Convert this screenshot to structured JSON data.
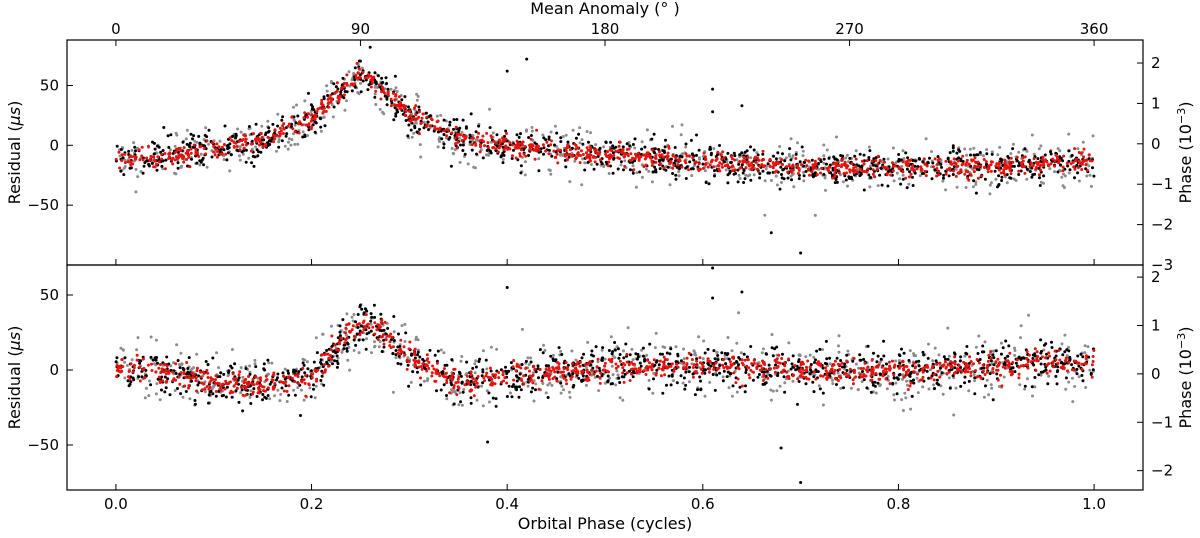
{
  "chart_data": {
    "type": "scatter",
    "layout": "two vertically stacked panels sharing x-axis",
    "shared_x": {
      "bottom_label": "Orbital Phase (cycles)",
      "bottom_ticks": [
        0.0,
        0.2,
        0.4,
        0.6,
        0.8,
        1.0
      ],
      "bottom_tick_labels": [
        "0.0",
        "0.2",
        "0.4",
        "0.6",
        "0.8",
        "1.0"
      ],
      "xlim": [
        -0.05,
        1.05
      ],
      "top_label": "Mean Anomaly (° )",
      "top_ticks": [
        0,
        90,
        180,
        270,
        360
      ],
      "top_tick_labels": [
        "0",
        "90",
        "180",
        "270",
        "360"
      ]
    },
    "colors": {
      "series_black": "#000000",
      "series_gray": "#8c8c8c",
      "series_red": "#e8120c"
    },
    "series_names": [
      "black",
      "gray",
      "red"
    ],
    "panels": [
      {
        "name": "top",
        "ylabel": "Residual (μs)",
        "ylabel_parts": [
          "Residual (",
          "μs",
          ")"
        ],
        "ylim": [
          -100,
          88
        ],
        "yticks": [
          -50,
          0,
          50
        ],
        "ytick_labels": [
          "−50",
          "0",
          "50"
        ],
        "right_ylabel": "Phase (10⁻³)",
        "right_ylabel_parts": [
          "Phase (10",
          "−3",
          ")"
        ],
        "right_ylim": [
          -3.0,
          2.57
        ],
        "right_ticks": [
          -3,
          -2,
          -1,
          0,
          1,
          2
        ],
        "right_tick_labels": [
          "−3",
          "−2",
          "−1",
          "0",
          "1",
          "2"
        ],
        "trend": {
          "x": [
            0.0,
            0.05,
            0.1,
            0.15,
            0.2,
            0.23,
            0.25,
            0.27,
            0.3,
            0.35,
            0.4,
            0.5,
            0.6,
            0.7,
            0.8,
            0.9,
            0.95,
            1.0
          ],
          "y": [
            -13,
            -9,
            -4,
            5,
            22,
            45,
            60,
            48,
            25,
            7,
            0,
            -8,
            -14,
            -18,
            -19,
            -17,
            -15,
            -13
          ]
        },
        "scatter_sigma": {
          "red": 4,
          "black": 7,
          "gray": 10
        },
        "outliers": [
          {
            "x": 0.42,
            "y": 72
          },
          {
            "x": 0.4,
            "y": 62
          },
          {
            "x": 0.61,
            "y": 47
          },
          {
            "x": 0.61,
            "y": 28
          },
          {
            "x": 0.64,
            "y": 33
          },
          {
            "x": 0.67,
            "y": -73
          },
          {
            "x": 0.7,
            "y": -90
          },
          {
            "x": 0.24,
            "y": 88
          },
          {
            "x": 0.26,
            "y": 82
          }
        ]
      },
      {
        "name": "bottom",
        "ylabel": "Residual (μs)",
        "ylabel_parts": [
          "Residual (",
          "μs",
          ")"
        ],
        "ylim": [
          -80,
          70
        ],
        "yticks": [
          -50,
          0,
          50
        ],
        "ytick_labels": [
          "−50",
          "0",
          "50"
        ],
        "right_ylabel": "Phase (10⁻³)",
        "right_ylabel_parts": [
          "Phase (10",
          "−3",
          ")"
        ],
        "right_ylim": [
          -2.4,
          2.25
        ],
        "right_ticks": [
          -2,
          -1,
          0,
          1,
          2
        ],
        "right_tick_labels": [
          "−2",
          "−1",
          "0",
          "1",
          "2"
        ],
        "trend": {
          "x": [
            0.0,
            0.05,
            0.1,
            0.15,
            0.2,
            0.23,
            0.25,
            0.27,
            0.3,
            0.35,
            0.4,
            0.5,
            0.6,
            0.7,
            0.8,
            0.9,
            0.95,
            1.0
          ],
          "y": [
            2,
            -3,
            -8,
            -11,
            -5,
            18,
            32,
            25,
            8,
            -8,
            -5,
            2,
            3,
            0,
            -2,
            2,
            5,
            4
          ]
        },
        "scatter_sigma": {
          "red": 4,
          "black": 7,
          "gray": 10
        },
        "outliers": [
          {
            "x": 0.43,
            "y": 70
          },
          {
            "x": 0.4,
            "y": 55
          },
          {
            "x": 0.61,
            "y": 68
          },
          {
            "x": 0.61,
            "y": 48
          },
          {
            "x": 0.64,
            "y": 52
          },
          {
            "x": 0.7,
            "y": -75
          },
          {
            "x": 0.68,
            "y": -52
          },
          {
            "x": 0.38,
            "y": -48
          }
        ]
      }
    ]
  }
}
